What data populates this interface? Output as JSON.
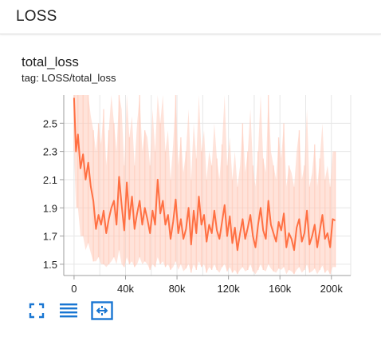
{
  "header": {
    "title": "LOSS"
  },
  "card": {
    "title": "total_loss",
    "tag": "tag: LOSS/total_loss"
  },
  "colors": {
    "line": "#ff7043",
    "smooth_band": "#ffccbc",
    "grid": "#e6e6e6",
    "axis": "#9e9e9e",
    "icon": "#1976d2"
  },
  "buttons": [
    {
      "name": "fit-to-screen-button",
      "icon": "expand-corners-icon"
    },
    {
      "name": "toggle-data-list-button",
      "icon": "list-lines-icon"
    },
    {
      "name": "fit-domain-button",
      "icon": "fit-domain-icon"
    }
  ],
  "chart_data": {
    "type": "line",
    "title": "",
    "xlabel": "",
    "ylabel": "",
    "xlim": [
      -8000,
      215000
    ],
    "ylim": [
      1.42,
      2.7
    ],
    "x_ticks": [
      0,
      40000,
      80000,
      120000,
      160000,
      200000
    ],
    "x_tick_labels": [
      "0",
      "40k",
      "80k",
      "120k",
      "160k",
      "200k"
    ],
    "y_ticks": [
      1.5,
      1.7,
      1.9,
      2.1,
      2.3,
      2.5
    ],
    "y_tick_labels": [
      "1.5",
      "1.7",
      "1.9",
      "2.1",
      "2.3",
      "2.5"
    ],
    "grid": true,
    "series": [
      {
        "x": [
          0,
          1500,
          3000,
          5000,
          7000,
          9000,
          11000,
          13000,
          15000,
          17000,
          19000,
          21000,
          23000,
          25000,
          27000,
          29000,
          31000,
          33000,
          35000,
          37000,
          39000,
          41000,
          43000,
          45000,
          47000,
          49000,
          51000,
          53000,
          55000,
          57000,
          59000,
          61000,
          63000,
          65000,
          67000,
          69000,
          71000,
          73000,
          75000,
          77000,
          79000,
          81000,
          83000,
          85000,
          87000,
          89000,
          91000,
          93000,
          95000,
          97000,
          99000,
          101000,
          103000,
          105000,
          107000,
          109000,
          111000,
          113000,
          115000,
          117000,
          119000,
          121000,
          123000,
          125000,
          127000,
          129000,
          131000,
          133000,
          135000,
          137000,
          139000,
          141000,
          143000,
          145000,
          147000,
          149000,
          151000,
          153000,
          155000,
          157000,
          159000,
          161000,
          163000,
          165000,
          167000,
          169000,
          171000,
          173000,
          175000,
          177000,
          179000,
          181000,
          183000,
          185000,
          187000,
          189000,
          191000,
          193000,
          195000,
          197000,
          199000,
          201000,
          203000
        ],
        "y": [
          2.68,
          2.3,
          2.42,
          2.18,
          2.28,
          2.1,
          2.22,
          2.05,
          1.95,
          1.75,
          1.85,
          1.78,
          1.88,
          1.72,
          1.82,
          1.9,
          1.95,
          1.78,
          2.12,
          1.92,
          1.74,
          2.08,
          1.82,
          1.98,
          1.75,
          1.86,
          1.95,
          1.78,
          1.9,
          1.82,
          1.72,
          1.88,
          1.78,
          2.1,
          1.86,
          1.95,
          1.78,
          1.85,
          1.68,
          1.8,
          1.96,
          1.72,
          1.82,
          1.68,
          1.75,
          1.9,
          1.64,
          1.88,
          1.72,
          1.98,
          1.78,
          1.85,
          1.66,
          1.78,
          1.72,
          1.88,
          1.74,
          1.68,
          1.8,
          1.92,
          1.7,
          1.84,
          1.65,
          1.76,
          1.6,
          1.72,
          1.82,
          1.68,
          1.76,
          1.85,
          1.7,
          1.62,
          1.78,
          1.9,
          1.74,
          1.68,
          1.95,
          1.78,
          1.72,
          1.66,
          1.8,
          1.74,
          1.86,
          1.62,
          1.72,
          1.68,
          1.6,
          1.76,
          1.82,
          1.66,
          1.72,
          1.88,
          1.64,
          1.7,
          1.78,
          1.62,
          1.74,
          1.85,
          1.68,
          1.72,
          1.62,
          1.82,
          1.81
        ],
        "band_low": [
          2.3,
          1.9,
          1.9,
          1.7,
          1.7,
          1.6,
          1.65,
          1.58,
          1.52,
          1.52,
          1.55,
          1.5,
          1.5,
          1.48,
          1.5,
          1.52,
          1.55,
          1.5,
          1.6,
          1.5,
          1.48,
          1.55,
          1.5,
          1.52,
          1.48,
          1.5,
          1.55,
          1.5,
          1.52,
          1.5,
          1.46,
          1.5,
          1.48,
          1.55,
          1.5,
          1.52,
          1.48,
          1.5,
          1.46,
          1.48,
          1.52,
          1.46,
          1.5,
          1.45,
          1.47,
          1.5,
          1.44,
          1.5,
          1.46,
          1.52,
          1.48,
          1.5,
          1.44,
          1.48,
          1.46,
          1.5,
          1.46,
          1.44,
          1.48,
          1.5,
          1.45,
          1.48,
          1.44,
          1.46,
          1.43,
          1.46,
          1.48,
          1.45,
          1.46,
          1.5,
          1.45,
          1.43,
          1.46,
          1.5,
          1.46,
          1.45,
          1.5,
          1.47,
          1.45,
          1.44,
          1.47,
          1.46,
          1.48,
          1.43,
          1.46,
          1.45,
          1.43,
          1.46,
          1.48,
          1.44,
          1.46,
          1.5,
          1.44,
          1.45,
          1.47,
          1.43,
          1.46,
          1.49,
          1.44,
          1.46,
          1.43,
          1.48,
          1.48
        ],
        "band_high": [
          2.7,
          2.7,
          2.7,
          2.7,
          2.7,
          2.7,
          2.7,
          2.55,
          2.45,
          2.3,
          2.5,
          2.35,
          2.6,
          2.2,
          2.45,
          2.7,
          2.5,
          2.3,
          2.7,
          2.6,
          2.2,
          2.7,
          2.4,
          2.55,
          2.2,
          2.5,
          2.7,
          2.3,
          2.45,
          2.4,
          2.2,
          2.6,
          2.3,
          2.7,
          2.5,
          2.7,
          2.3,
          2.45,
          2.1,
          2.35,
          2.7,
          2.2,
          2.4,
          2.15,
          2.3,
          2.6,
          2.1,
          2.5,
          2.25,
          2.7,
          2.3,
          2.45,
          2.1,
          2.3,
          2.2,
          2.5,
          2.25,
          2.1,
          2.35,
          2.7,
          2.2,
          2.4,
          2.1,
          2.3,
          2.05,
          2.2,
          2.5,
          2.15,
          2.3,
          2.6,
          2.2,
          2.05,
          2.3,
          2.7,
          2.25,
          2.15,
          2.7,
          2.3,
          2.2,
          2.1,
          2.4,
          2.25,
          2.5,
          2.05,
          2.2,
          2.15,
          2.05,
          2.3,
          2.45,
          2.1,
          2.2,
          2.6,
          2.05,
          2.15,
          2.35,
          2.05,
          2.25,
          2.5,
          2.1,
          2.2,
          2.05,
          2.3,
          2.3
        ]
      }
    ]
  }
}
